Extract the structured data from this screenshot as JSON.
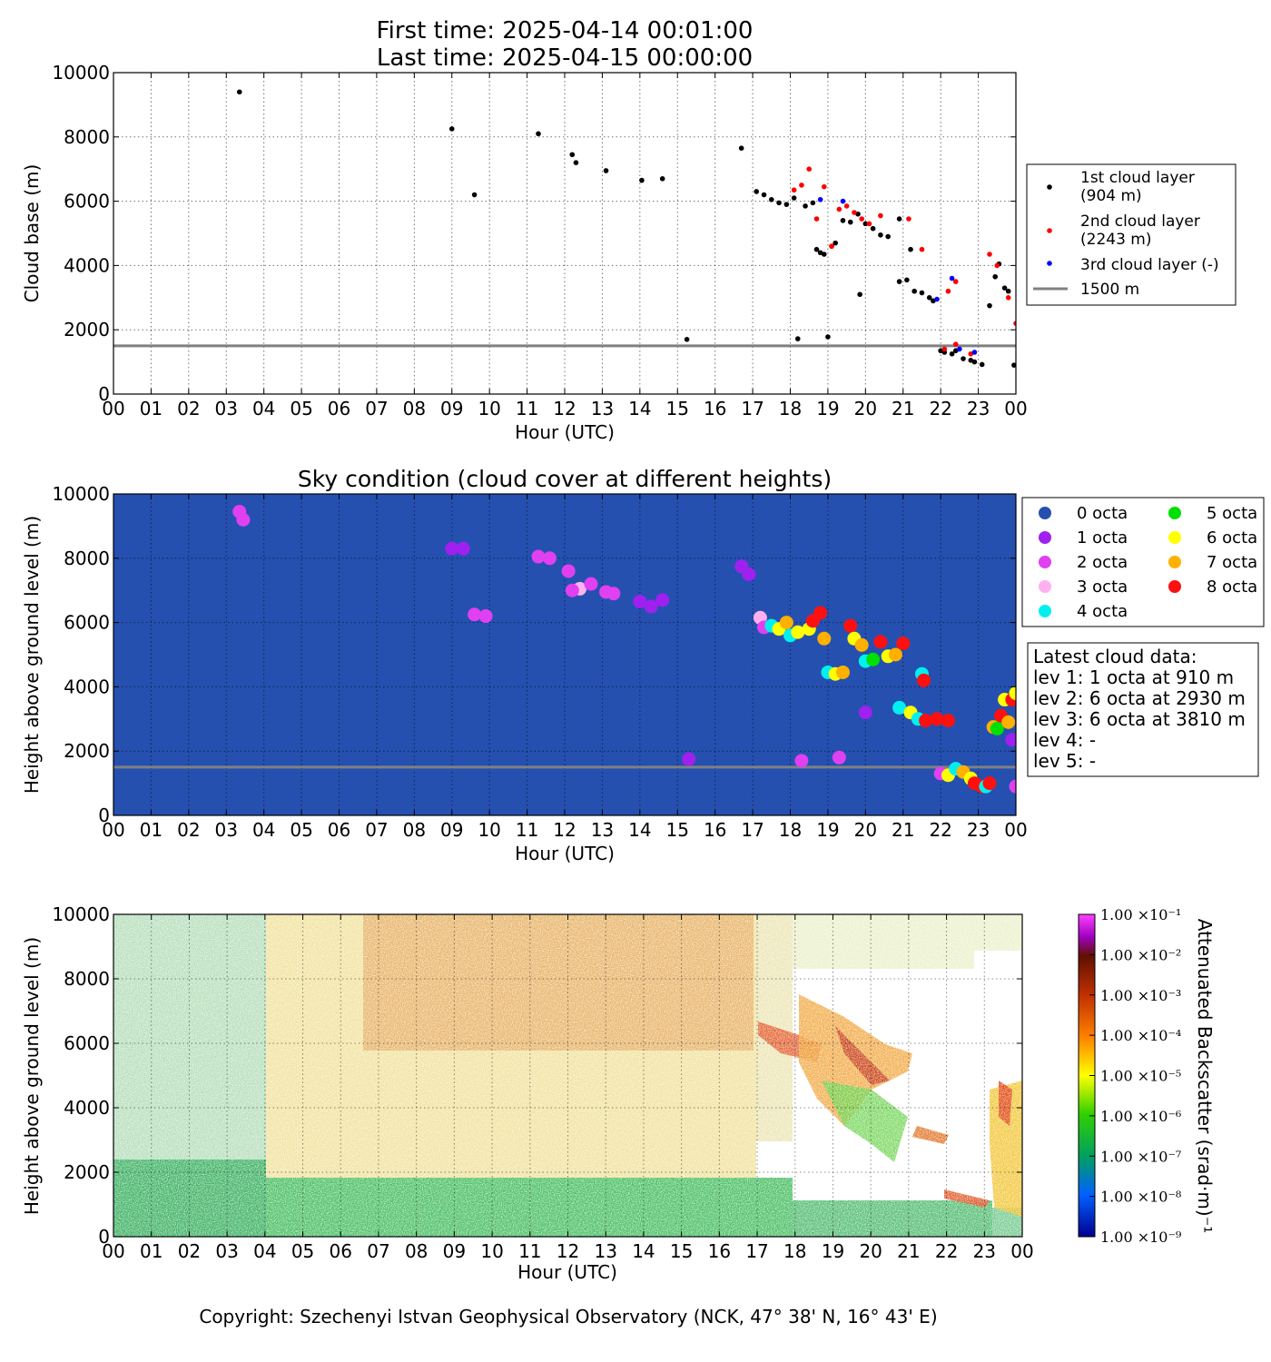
{
  "header": {
    "first_time": "First time: 2025-04-14 00:01:00",
    "last_time": "Last time: 2025-04-15 00:00:00"
  },
  "footer": "Copyright: Szechenyi Istvan Geophysical Observatory (NCK, 47° 38' N, 16° 43' E)",
  "colors": {
    "layer1": "#000000",
    "layer2": "#ff0000",
    "layer3": "#0000ff",
    "ref_line": "#808080",
    "sky_background": "#2550b0",
    "octa": [
      "#2550b0",
      "#a020f0",
      "#e040f0",
      "#ffb0f0",
      "#00f0f0",
      "#00e000",
      "#ffff00",
      "#ffb000",
      "#ff1010"
    ]
  },
  "x_ticks": [
    "00",
    "01",
    "02",
    "03",
    "04",
    "05",
    "06",
    "07",
    "08",
    "09",
    "10",
    "11",
    "12",
    "13",
    "14",
    "15",
    "16",
    "17",
    "18",
    "19",
    "20",
    "21",
    "22",
    "23",
    "00"
  ],
  "chart_data": [
    {
      "type": "scatter",
      "title": "",
      "xlabel": "Hour (UTC)",
      "ylabel": "Cloud base (m)",
      "xlim": [
        0,
        24
      ],
      "ylim": [
        0,
        10000
      ],
      "yticks": [
        "0",
        "2000",
        "4000",
        "6000",
        "8000",
        "10000"
      ],
      "grid": true,
      "legend_position": "right",
      "reference_line": {
        "y": 1500,
        "label": "1500 m"
      },
      "series": [
        {
          "name": "1st cloud layer\n(904 m)",
          "legend_lines": [
            "1st cloud layer",
            "(904 m)"
          ],
          "points": [
            [
              3.35,
              9400
            ],
            [
              9.0,
              8250
            ],
            [
              9.6,
              6200
            ],
            [
              11.3,
              8100
            ],
            [
              12.2,
              7450
            ],
            [
              12.3,
              7200
            ],
            [
              13.1,
              6950
            ],
            [
              14.05,
              6650
            ],
            [
              14.6,
              6700
            ],
            [
              15.25,
              1700
            ],
            [
              16.7,
              7650
            ],
            [
              17.1,
              6300
            ],
            [
              17.3,
              6200
            ],
            [
              17.5,
              6050
            ],
            [
              17.7,
              5950
            ],
            [
              17.9,
              5900
            ],
            [
              18.1,
              6100
            ],
            [
              18.2,
              1720
            ],
            [
              18.4,
              5850
            ],
            [
              18.6,
              5950
            ],
            [
              18.7,
              4500
            ],
            [
              18.8,
              4400
            ],
            [
              18.9,
              4350
            ],
            [
              19.0,
              1780
            ],
            [
              19.1,
              4600
            ],
            [
              19.2,
              4700
            ],
            [
              19.4,
              5400
            ],
            [
              19.6,
              5350
            ],
            [
              19.8,
              5600
            ],
            [
              19.85,
              3100
            ],
            [
              20.0,
              5300
            ],
            [
              20.2,
              5150
            ],
            [
              20.4,
              4950
            ],
            [
              20.6,
              4900
            ],
            [
              20.9,
              5450
            ],
            [
              20.9,
              3500
            ],
            [
              21.1,
              3550
            ],
            [
              21.2,
              4500
            ],
            [
              21.3,
              3200
            ],
            [
              21.5,
              3150
            ],
            [
              21.7,
              3000
            ],
            [
              21.8,
              2900
            ],
            [
              22.0,
              1350
            ],
            [
              22.1,
              1300
            ],
            [
              22.3,
              1250
            ],
            [
              22.4,
              1350
            ],
            [
              22.6,
              1100
            ],
            [
              22.8,
              1050
            ],
            [
              22.9,
              1000
            ],
            [
              23.1,
              920
            ],
            [
              23.3,
              2750
            ],
            [
              23.45,
              3650
            ],
            [
              23.55,
              4050
            ],
            [
              23.7,
              3300
            ],
            [
              23.8,
              3200
            ],
            [
              23.95,
              900
            ]
          ]
        },
        {
          "name": "2nd cloud layer\n(2243 m)",
          "legend_lines": [
            "2nd cloud layer",
            "(2243 m)"
          ],
          "points": [
            [
              18.1,
              6350
            ],
            [
              18.3,
              6500
            ],
            [
              18.5,
              7000
            ],
            [
              18.7,
              5450
            ],
            [
              18.9,
              6450
            ],
            [
              19.1,
              4600
            ],
            [
              19.3,
              5750
            ],
            [
              19.5,
              5850
            ],
            [
              19.7,
              5650
            ],
            [
              19.9,
              5450
            ],
            [
              20.1,
              5300
            ],
            [
              20.4,
              5550
            ],
            [
              21.15,
              5450
            ],
            [
              21.5,
              4500
            ],
            [
              22.2,
              3200
            ],
            [
              22.4,
              3500
            ],
            [
              22.1,
              1400
            ],
            [
              22.4,
              1550
            ],
            [
              22.8,
              1250
            ],
            [
              23.3,
              4350
            ],
            [
              23.5,
              4000
            ],
            [
              23.8,
              3000
            ],
            [
              24.0,
              2200
            ]
          ]
        },
        {
          "name": "3rd cloud layer (-)",
          "legend_lines": [
            "3rd cloud layer (-)"
          ],
          "points": [
            [
              18.8,
              6050
            ],
            [
              19.4,
              6000
            ],
            [
              21.9,
              2950
            ],
            [
              22.3,
              3600
            ],
            [
              22.5,
              1400
            ],
            [
              22.9,
              1300
            ]
          ]
        }
      ]
    },
    {
      "type": "scatter",
      "title": "Sky condition (cloud cover at different heights)",
      "xlabel": "Hour (UTC)",
      "ylabel": "Height above ground level (m)",
      "xlim": [
        0,
        24
      ],
      "ylim": [
        0,
        10000
      ],
      "yticks": [
        "0",
        "2000",
        "4000",
        "6000",
        "8000",
        "10000"
      ],
      "grid": true,
      "legend_position": "right",
      "reference_line": {
        "y": 1500
      },
      "legend": [
        "0 octa",
        "1 octa",
        "2 octa",
        "3 octa",
        "4 octa",
        "5 octa",
        "6 octa",
        "7 octa",
        "8 octa"
      ],
      "points_octa_hour_height": [
        [
          2,
          3.35,
          9450
        ],
        [
          2,
          3.45,
          9200
        ],
        [
          1,
          9.0,
          8300
        ],
        [
          1,
          9.3,
          8300
        ],
        [
          2,
          9.6,
          6250
        ],
        [
          2,
          9.9,
          6200
        ],
        [
          2,
          11.3,
          8050
        ],
        [
          2,
          11.6,
          8000
        ],
        [
          2,
          12.1,
          7600
        ],
        [
          3,
          12.4,
          7050
        ],
        [
          2,
          12.7,
          7200
        ],
        [
          2,
          12.2,
          7000
        ],
        [
          2,
          13.1,
          6950
        ],
        [
          2,
          13.3,
          6900
        ],
        [
          1,
          14.0,
          6650
        ],
        [
          1,
          14.3,
          6500
        ],
        [
          1,
          14.6,
          6700
        ],
        [
          1,
          15.3,
          1750
        ],
        [
          1,
          16.7,
          7750
        ],
        [
          1,
          16.9,
          7500
        ],
        [
          3,
          17.2,
          6150
        ],
        [
          2,
          17.3,
          5850
        ],
        [
          4,
          17.5,
          5900
        ],
        [
          6,
          17.7,
          5800
        ],
        [
          7,
          17.9,
          6000
        ],
        [
          4,
          18.0,
          5600
        ],
        [
          6,
          18.2,
          5700
        ],
        [
          2,
          18.3,
          1700
        ],
        [
          6,
          18.5,
          5800
        ],
        [
          8,
          18.6,
          6050
        ],
        [
          8,
          18.8,
          6300
        ],
        [
          7,
          18.9,
          5500
        ],
        [
          4,
          19.0,
          4450
        ],
        [
          6,
          19.2,
          4400
        ],
        [
          2,
          19.3,
          1800
        ],
        [
          7,
          19.4,
          4450
        ],
        [
          8,
          19.6,
          5900
        ],
        [
          6,
          19.7,
          5500
        ],
        [
          7,
          19.9,
          5300
        ],
        [
          4,
          20.0,
          4800
        ],
        [
          1,
          20.0,
          3200
        ],
        [
          5,
          20.2,
          4850
        ],
        [
          8,
          20.4,
          5400
        ],
        [
          6,
          20.6,
          4950
        ],
        [
          7,
          20.8,
          5000
        ],
        [
          4,
          20.9,
          3350
        ],
        [
          8,
          21.0,
          5350
        ],
        [
          6,
          21.2,
          3200
        ],
        [
          4,
          21.4,
          3000
        ],
        [
          8,
          21.6,
          2950
        ],
        [
          4,
          21.5,
          4400
        ],
        [
          8,
          21.55,
          4200
        ],
        [
          8,
          21.9,
          3000
        ],
        [
          8,
          22.2,
          2950
        ],
        [
          2,
          22.0,
          1300
        ],
        [
          6,
          22.2,
          1250
        ],
        [
          4,
          22.4,
          1450
        ],
        [
          7,
          22.6,
          1350
        ],
        [
          6,
          22.8,
          1150
        ],
        [
          8,
          22.9,
          1000
        ],
        [
          8,
          23.1,
          900
        ],
        [
          4,
          23.2,
          900
        ],
        [
          8,
          23.3,
          1000
        ],
        [
          7,
          23.4,
          2750
        ],
        [
          5,
          23.5,
          2700
        ],
        [
          8,
          23.6,
          3100
        ],
        [
          6,
          23.7,
          3600
        ],
        [
          7,
          23.8,
          2900
        ],
        [
          8,
          23.9,
          3600
        ],
        [
          6,
          24.0,
          3800
        ],
        [
          2,
          24.0,
          900
        ],
        [
          1,
          23.9,
          2350
        ]
      ],
      "info_box": {
        "title": "Latest cloud data:",
        "lines": [
          "lev 1: 1 octa at 910 m",
          "lev 2: 6 octa at 2930 m",
          "lev 3: 6 octa at 3810 m",
          "lev 4: -",
          "lev 5: -"
        ]
      }
    },
    {
      "type": "heatmap",
      "title": "",
      "xlabel": "Hour (UTC)",
      "ylabel": "Height above ground level (m)",
      "xlim": [
        0,
        24
      ],
      "ylim": [
        0,
        10000
      ],
      "yticks": [
        "0",
        "2000",
        "4000",
        "6000",
        "8000",
        "10000"
      ],
      "grid": true,
      "colorbar": {
        "label": "Attenuated Backscatter (srad·m)⁻¹",
        "scale": "log",
        "range": [
          1e-09,
          0.1
        ],
        "ticks": [
          "1.00 ×10⁻⁹",
          "1.00 ×10⁻⁸",
          "1.00 ×10⁻⁷",
          "1.00 ×10⁻⁶",
          "1.00 ×10⁻⁵",
          "1.00 ×10⁻⁴",
          "1.00 ×10⁻³",
          "1.00 ×10⁻²",
          "1.00 ×10⁻¹"
        ],
        "colors": [
          "#00008f",
          "#0060ff",
          "#00a040",
          "#30d000",
          "#ffff00",
          "#ff8000",
          "#c03000",
          "#601000",
          "#b000ff",
          "#ff40ff"
        ]
      }
    }
  ]
}
